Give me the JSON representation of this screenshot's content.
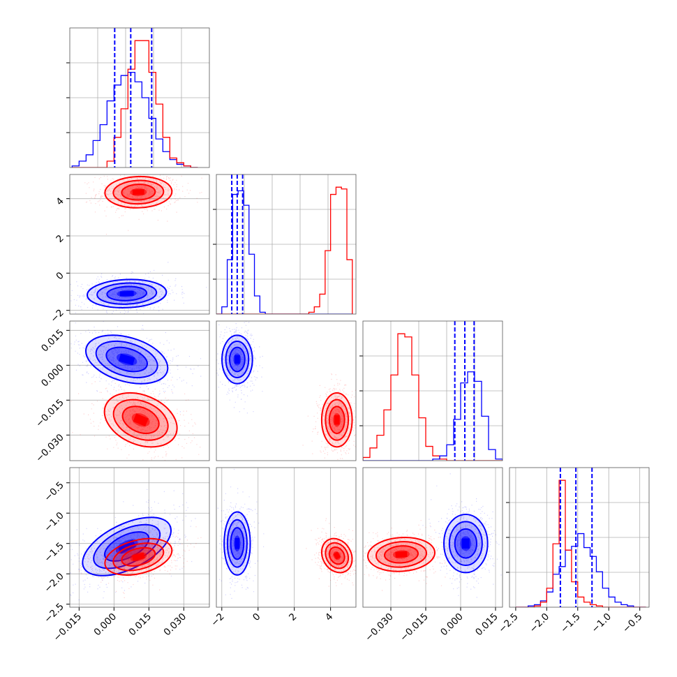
{
  "colors": {
    "series_a": "#0000ff",
    "series_b": "#ff0000",
    "grid": "#b0b0b0",
    "frame": "#555555"
  },
  "chart_data": {
    "type": "corner",
    "grid": true,
    "panels": [
      {
        "id": "h0",
        "kind": "histogram",
        "row": 0,
        "col": 0,
        "xlim": [
          -0.019,
          0.041
        ],
        "bins": [
          -0.018,
          -0.015,
          -0.012,
          -0.009,
          -0.006,
          -0.003,
          0.0,
          0.003,
          0.006,
          0.009,
          0.012,
          0.015,
          0.018,
          0.021,
          0.024,
          0.027,
          0.03,
          0.033,
          0.036
        ],
        "series": [
          {
            "color": "series_a",
            "counts": [
              1,
              4,
              8,
              17,
              27,
              42,
              52,
              58,
              60,
              54,
              44,
              31,
              18,
              10,
              5,
              2,
              1,
              0
            ]
          },
          {
            "color": "series_b",
            "counts": [
              0,
              0,
              0,
              0,
              0,
              4,
              19,
              37,
              62,
              80,
              80,
              60,
              40,
              19,
              6,
              3,
              1,
              0
            ]
          }
        ],
        "vlines": [
          0.0003,
          0.0072,
          0.0162
        ],
        "ytick_count": 3
      },
      {
        "id": "c10",
        "kind": "contour",
        "row": 1,
        "col": 0,
        "xlim": [
          -0.019,
          0.041
        ],
        "ylim": [
          -2.2,
          5.3
        ],
        "yticks": [
          "-2",
          "0",
          "2",
          "4"
        ],
        "ytick_values": [
          -2,
          0,
          2,
          4
        ],
        "series": [
          {
            "color": "series_b",
            "center": [
              0.0105,
              4.35
            ],
            "sx": 0.0072,
            "sy": 0.42,
            "corr": 0.05
          },
          {
            "color": "series_a",
            "center": [
              0.0055,
              -1.1
            ],
            "sx": 0.0085,
            "sy": 0.38,
            "corr": 0.1
          }
        ]
      },
      {
        "id": "h1",
        "kind": "histogram",
        "row": 1,
        "col": 1,
        "xlim": [
          -2.3,
          5.4
        ],
        "bins": [
          -2.3,
          -2.0,
          -1.7,
          -1.4,
          -1.1,
          -0.8,
          -0.5,
          -0.2,
          0.1,
          0.4,
          0.7,
          1.0,
          1.3,
          1.6,
          1.9,
          2.2,
          2.5,
          2.8,
          3.1,
          3.4,
          3.7,
          4.0,
          4.3,
          4.6,
          4.9,
          5.2
        ],
        "series": [
          {
            "color": "series_a",
            "counts": [
              0,
              4,
              30,
              66,
              68,
              60,
              33,
              10,
              1,
              0,
              0,
              0,
              0,
              0,
              0,
              0,
              0,
              0,
              0,
              0,
              0,
              0,
              0,
              0,
              0
            ]
          },
          {
            "color": "series_b",
            "counts": [
              0,
              0,
              0,
              0,
              0,
              0,
              0,
              0,
              0,
              0,
              0,
              0,
              0,
              0,
              0,
              0,
              0,
              1,
              4,
              11,
              35,
              66,
              70,
              69,
              30
            ]
          }
        ],
        "vlines": [
          -1.45,
          -1.15,
          -0.85
        ]
      },
      {
        "id": "c20",
        "kind": "contour",
        "row": 2,
        "col": 0,
        "xlim": [
          -0.019,
          0.041
        ],
        "ylim": [
          -0.041,
          0.019
        ],
        "yticks": [
          "0.015",
          "0.000",
          "-0.015",
          "-0.030"
        ],
        "ytick_values": [
          0.015,
          0.0,
          -0.015,
          -0.03
        ],
        "series": [
          {
            "color": "series_a",
            "center": [
              0.0055,
              0.0025
            ],
            "sx": 0.0088,
            "sy": 0.0052,
            "corr": -0.35
          },
          {
            "color": "series_b",
            "center": [
              0.0115,
              -0.0235
            ],
            "sx": 0.0078,
            "sy": 0.0058,
            "corr": -0.3
          }
        ]
      },
      {
        "id": "c21",
        "kind": "contour",
        "row": 2,
        "col": 1,
        "xlim": [
          -2.3,
          5.4
        ],
        "ylim": [
          -0.041,
          0.019
        ],
        "series": [
          {
            "color": "series_a",
            "center": [
              -1.15,
              0.0025
            ],
            "sx": 0.42,
            "sy": 0.0052,
            "corr": 0.0
          },
          {
            "color": "series_b",
            "center": [
              4.35,
              -0.0235
            ],
            "sx": 0.42,
            "sy": 0.0058,
            "corr": 0.0
          }
        ]
      },
      {
        "id": "h2",
        "kind": "histogram",
        "row": 2,
        "col": 2,
        "xlim": [
          -0.042,
          0.018
        ],
        "bins": [
          -0.042,
          -0.039,
          -0.036,
          -0.033,
          -0.03,
          -0.027,
          -0.024,
          -0.021,
          -0.018,
          -0.015,
          -0.012,
          -0.009,
          -0.006,
          -0.003,
          0.0,
          0.003,
          0.006,
          0.009,
          0.012,
          0.015,
          0.018
        ],
        "series": [
          {
            "color": "series_b",
            "counts": [
              2,
              8,
              16,
              32,
              54,
              80,
              78,
              54,
              27,
              9,
              3,
              1,
              0,
              0,
              0,
              0,
              0,
              0,
              0,
              0
            ]
          },
          {
            "color": "series_a",
            "counts": [
              0,
              0,
              0,
              0,
              0,
              0,
              0,
              0,
              0,
              0,
              1,
              3,
              10,
              26,
              49,
              56,
              50,
              28,
              7,
              1
            ]
          }
        ],
        "vlines": [
          -0.0025,
          0.0018,
          0.0058
        ]
      },
      {
        "id": "c30",
        "kind": "contour",
        "row": 3,
        "col": 0,
        "xlim": [
          -0.019,
          0.041
        ],
        "ylim": [
          -2.55,
          -0.25
        ],
        "yticks": [
          "-0.5",
          "-1.0",
          "-1.5",
          "-2.0",
          "-2.5"
        ],
        "ytick_values": [
          -0.5,
          -1.0,
          -1.5,
          -2.0,
          -2.5
        ],
        "xticks": [
          "-0.015",
          "0.000",
          "0.015",
          "0.030"
        ],
        "xtick_values": [
          -0.015,
          0.0,
          0.015,
          0.03
        ],
        "series": [
          {
            "color": "series_a",
            "center": [
              0.0055,
              -1.55
            ],
            "sx": 0.0095,
            "sy": 0.24,
            "corr": 0.55
          },
          {
            "color": "series_b",
            "center": [
              0.0105,
              -1.72
            ],
            "sx": 0.0072,
            "sy": 0.15,
            "corr": 0.35
          }
        ]
      },
      {
        "id": "c31",
        "kind": "contour",
        "row": 3,
        "col": 1,
        "xlim": [
          -2.3,
          5.4
        ],
        "ylim": [
          -2.55,
          -0.25
        ],
        "xticks": [
          "-2",
          "0",
          "2",
          "4"
        ],
        "xtick_values": [
          -2,
          0,
          2,
          4
        ],
        "series": [
          {
            "color": "series_a",
            "center": [
              -1.15,
              -1.5
            ],
            "sx": 0.36,
            "sy": 0.26,
            "corr": 0.0
          },
          {
            "color": "series_b",
            "center": [
              4.35,
              -1.7
            ],
            "sx": 0.42,
            "sy": 0.14,
            "corr": -0.2
          }
        ]
      },
      {
        "id": "c32",
        "kind": "contour",
        "row": 3,
        "col": 2,
        "xlim": [
          -0.042,
          0.018
        ],
        "ylim": [
          -2.55,
          -0.25
        ],
        "xticks": [
          "-0.030",
          "-0.015",
          "0.000",
          "0.015"
        ],
        "xtick_values": [
          -0.03,
          -0.015,
          0.0,
          0.015
        ],
        "series": [
          {
            "color": "series_b",
            "center": [
              -0.0255,
              -1.68
            ],
            "sx": 0.0072,
            "sy": 0.14,
            "corr": 0.1
          },
          {
            "color": "series_a",
            "center": [
              0.0022,
              -1.5
            ],
            "sx": 0.0047,
            "sy": 0.24,
            "corr": 0.0
          }
        ]
      },
      {
        "id": "h3",
        "kind": "histogram",
        "row": 3,
        "col": 3,
        "xlim": [
          -2.6,
          -0.35
        ],
        "xticks": [
          "-2.5",
          "-2.0",
          "-1.5",
          "-1.0",
          "-0.5"
        ],
        "xtick_values": [
          -2.5,
          -2.0,
          -1.5,
          -1.0,
          -0.5
        ],
        "bins": [
          -2.5,
          -2.4,
          -2.3,
          -2.2,
          -2.1,
          -2.0,
          -1.9,
          -1.8,
          -1.7,
          -1.6,
          -1.5,
          -1.4,
          -1.3,
          -1.2,
          -1.1,
          -1.0,
          -0.9,
          -0.8,
          -0.7,
          -0.6,
          -0.5,
          -0.4
        ],
        "series": [
          {
            "color": "series_a",
            "counts": [
              0,
              0,
              1,
              2,
              5,
              12,
              26,
              32,
              45,
              48,
              58,
              47,
              40,
              28,
              15,
              8,
              4,
              2,
              1,
              0,
              0
            ]
          },
          {
            "color": "series_b",
            "counts": [
              0,
              0,
              0,
              1,
              4,
              15,
              50,
              100,
              45,
              20,
              8,
              4,
              2,
              1,
              0,
              0,
              0,
              0,
              0,
              0,
              0
            ]
          }
        ],
        "vlines": [
          -1.78,
          -1.53,
          -1.27
        ],
        "ytick_count": 3
      }
    ]
  }
}
